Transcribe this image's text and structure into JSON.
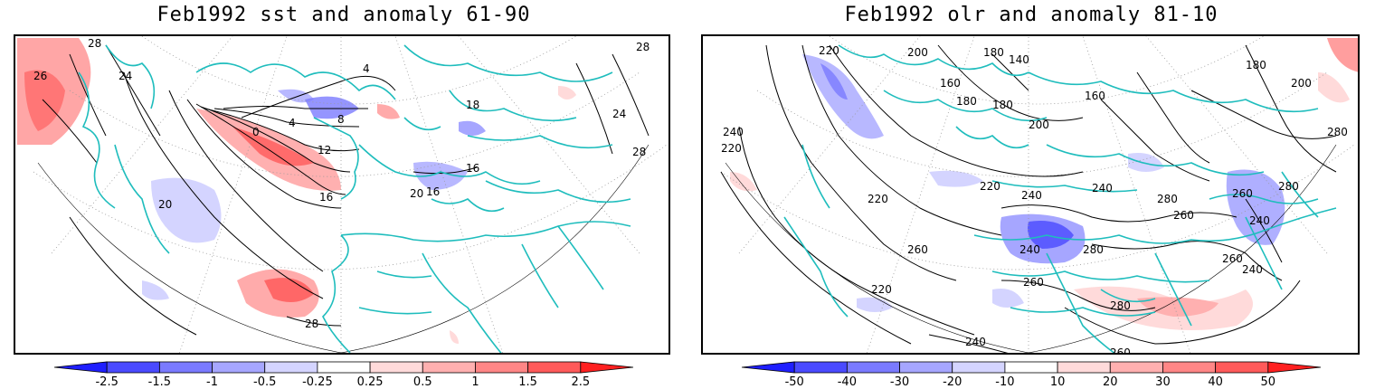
{
  "panels": [
    {
      "title": "Feb1992 sst and anomaly 61-90",
      "contour_labels": [
        "28",
        "26",
        "24",
        "20",
        "16",
        "12",
        "8",
        "4",
        "0",
        "4",
        "20",
        "16",
        "16",
        "28",
        "28",
        "24",
        "28",
        "18"
      ],
      "colorbar": {
        "ticks": [
          "-2.5",
          "-1.5",
          "-1",
          "-0.5",
          "-0.25",
          "0.25",
          "0.5",
          "1",
          "1.5",
          "2.5"
        ],
        "colors": [
          "#1f1fff",
          "#4a4aff",
          "#7a7aff",
          "#a6a6ff",
          "#d4d4ff",
          "#ffffff",
          "#ffdada",
          "#ffb0b0",
          "#ff8686",
          "#ff5a5a",
          "#ff2020"
        ]
      }
    },
    {
      "title": "Feb1992 olr and anomaly 81-10",
      "contour_labels": [
        "220",
        "180",
        "140",
        "160",
        "180",
        "200",
        "180",
        "240",
        "220",
        "200",
        "220",
        "240",
        "260",
        "280",
        "260",
        "240",
        "220",
        "240",
        "260",
        "280",
        "240",
        "260",
        "280",
        "260",
        "240",
        "280",
        "200",
        "260",
        "160",
        "280",
        "180",
        "220",
        "240"
      ],
      "colorbar": {
        "ticks": [
          "-50",
          "-40",
          "-30",
          "-20",
          "-10",
          "10",
          "20",
          "30",
          "40",
          "50"
        ],
        "colors": [
          "#1f1fff",
          "#4a4aff",
          "#7a7aff",
          "#a6a6ff",
          "#d4d4ff",
          "#ffffff",
          "#ffdada",
          "#ffb0b0",
          "#ff8686",
          "#ff5a5a",
          "#ff2020"
        ]
      }
    }
  ]
}
